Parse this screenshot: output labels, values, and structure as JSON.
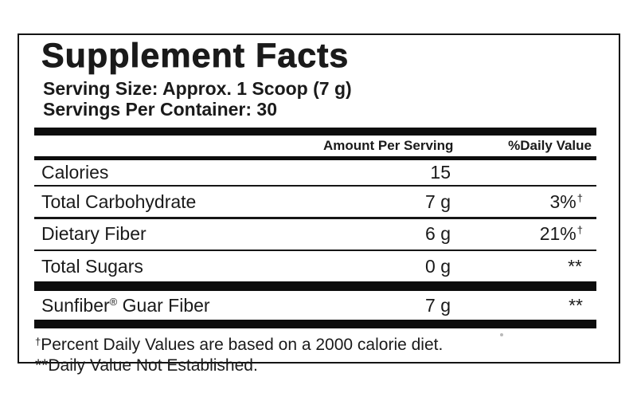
{
  "label": {
    "title": "Supplement Facts",
    "serving_size": "Serving Size: Approx. 1 Scoop (7 g)",
    "servings_per_container": "Servings Per Container: 30",
    "columns": {
      "amount": "Amount Per Serving",
      "dv": "%Daily Value"
    },
    "rows": [
      {
        "name": "Calories",
        "amount": "15",
        "dv": "",
        "dv_mark": ""
      },
      {
        "name": "Total Carbohydrate",
        "amount": "7 g",
        "dv": "3%",
        "dv_mark": "†"
      },
      {
        "name": "Dietary Fiber",
        "amount": "6 g",
        "dv": "21%",
        "dv_mark": "†"
      },
      {
        "name": "Total Sugars",
        "amount": "0 g",
        "dv": "**",
        "dv_mark": ""
      }
    ],
    "ingredient_row": {
      "brand": "Sunfiber",
      "trademark": "®",
      "name_rest": " Guar Fiber",
      "amount": "7 g",
      "dv": "**"
    },
    "footnotes": [
      {
        "marker": "†",
        "text": "Percent Daily Values are based on a 2000 calorie diet."
      },
      {
        "marker": "**",
        "text": "Daily Value Not Established."
      }
    ],
    "colors": {
      "text": "#1a1a1a",
      "bars": "#0d0d0d",
      "background": "#ffffff"
    }
  }
}
